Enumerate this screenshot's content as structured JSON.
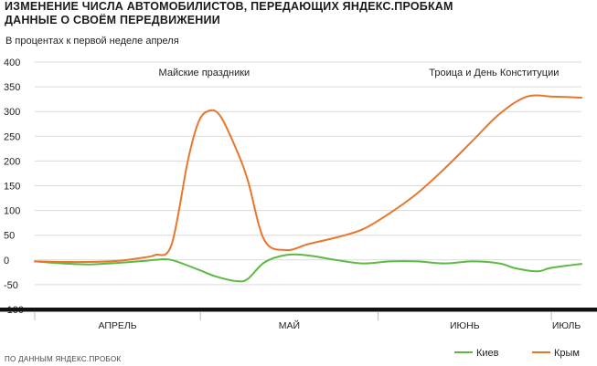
{
  "chart_data": {
    "type": "line",
    "title_line1": "ИЗМЕНЕНИЕ ЧИСЛА АВТОМОБИЛИСТОВ, ПЕРЕДАЮЩИХ ЯНДЕКС.ПРОБКАМ",
    "title_line2": "ДАННЫЕ О СВОЁМ ПЕРЕДВИЖЕНИИ",
    "subtitle": "В процентах к первой неделе апреля",
    "source": "ПО ДАННЫМ ЯНДЕКС.ПРОБОК",
    "ylim": [
      -100,
      400
    ],
    "yticks": [
      400,
      350,
      300,
      250,
      200,
      150,
      100,
      50,
      0,
      -50,
      -100
    ],
    "months": [
      "АПРЕЛЬ",
      "МАЙ",
      "ИЮНЬ",
      "ИЮЛЬ"
    ],
    "x_domain": [
      0,
      100
    ],
    "month_bounds": [
      0,
      30.3,
      62.8,
      94.5,
      100
    ],
    "annotations": [
      {
        "text": "Майские праздники",
        "x": 31,
        "y": 372
      },
      {
        "text": "Троица и День Конституции",
        "x": 84,
        "y": 372
      }
    ],
    "series": [
      {
        "name": "Киев",
        "color": "#5cb944",
        "x": [
          0,
          5,
          10,
          15,
          20,
          22,
          25,
          30,
          33,
          37,
          39,
          42,
          46,
          50,
          55,
          60,
          65,
          70,
          75,
          80,
          85,
          88,
          92,
          94,
          97,
          100
        ],
        "values": [
          -3,
          -7,
          -9,
          -6,
          -2,
          0,
          0,
          -20,
          -33,
          -43,
          -38,
          -5,
          10,
          9,
          0,
          -7,
          -3,
          -3,
          -7,
          -3,
          -7,
          -17,
          -23,
          -17,
          -12,
          -8
        ]
      },
      {
        "name": "Крым",
        "color": "#e8762c",
        "x": [
          0,
          5,
          10,
          15,
          20,
          22,
          25,
          28,
          30,
          32,
          34,
          37,
          39,
          42,
          46,
          50,
          55,
          60,
          65,
          70,
          75,
          80,
          85,
          90,
          95,
          100
        ],
        "values": [
          -3,
          -4,
          -4,
          -2,
          5,
          10,
          30,
          200,
          280,
          302,
          290,
          220,
          160,
          40,
          20,
          32,
          45,
          62,
          95,
          135,
          185,
          240,
          295,
          330,
          330,
          328
        ]
      }
    ]
  }
}
